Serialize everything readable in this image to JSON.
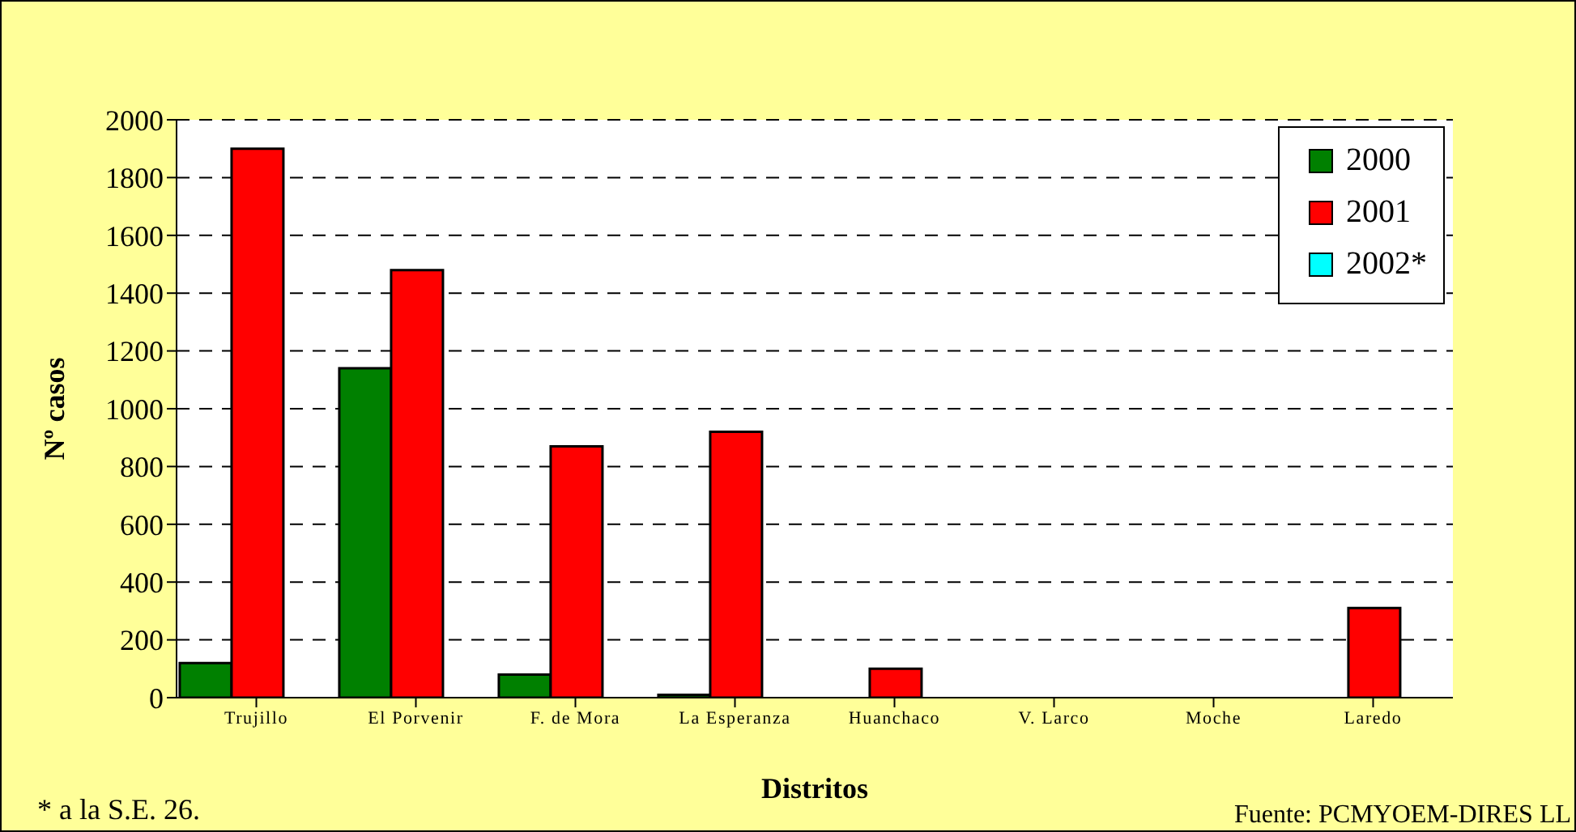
{
  "chart_data": {
    "type": "bar",
    "xlabel": "Distritos",
    "ylabel": "Nº casos",
    "categories": [
      "Trujillo",
      "El Porvenir",
      "F. de Mora",
      "La Esperanza",
      "Huanchaco",
      "V. Larco",
      "Moche",
      "Laredo"
    ],
    "series": [
      {
        "name": "2000",
        "color": "#008000",
        "values": [
          120,
          1140,
          80,
          10,
          null,
          null,
          null,
          null
        ]
      },
      {
        "name": "2001",
        "color": "#ff0000",
        "values": [
          1900,
          1480,
          870,
          920,
          100,
          null,
          null,
          310
        ]
      },
      {
        "name": "2002*",
        "color": "#00ffff",
        "values": [
          null,
          null,
          null,
          null,
          null,
          null,
          null,
          null
        ]
      }
    ],
    "ylim": [
      0,
      2000
    ],
    "yticks": [
      0,
      200,
      400,
      600,
      800,
      1000,
      1200,
      1400,
      1600,
      1800,
      2000
    ],
    "grid": "y",
    "legend": "top right",
    "annotations": [
      "* a la S.E. 26.",
      "Fuente: PCMYOEM-DIRES LL"
    ]
  }
}
